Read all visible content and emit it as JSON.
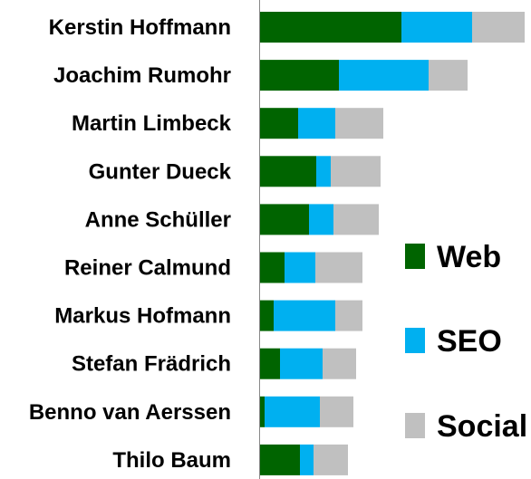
{
  "chart_data": {
    "type": "bar",
    "orientation": "horizontal",
    "stacked": true,
    "categories": [
      "Kerstin Hoffmann",
      "Joachim Rumohr",
      "Martin Limbeck",
      "Gunter Dueck",
      "Anne Schüller",
      "Reiner Calmund",
      "Markus Hofmann",
      "Stefan Frädrich",
      "Benno van Aerssen",
      "Thilo Baum"
    ],
    "series": [
      {
        "name": "Web",
        "color": "#006400",
        "values": [
          157,
          88,
          43,
          63,
          55,
          28,
          16,
          23,
          6,
          45
        ]
      },
      {
        "name": "SEO",
        "color": "#00b0f0",
        "values": [
          78,
          99,
          41,
          16,
          27,
          34,
          68,
          47,
          61,
          15
        ]
      },
      {
        "name": "Social",
        "color": "#c0c0c0",
        "values": [
          58,
          43,
          53,
          55,
          50,
          52,
          30,
          37,
          37,
          38
        ]
      }
    ],
    "xlim": [
      0,
      300
    ],
    "grid": false,
    "legend": "right"
  }
}
